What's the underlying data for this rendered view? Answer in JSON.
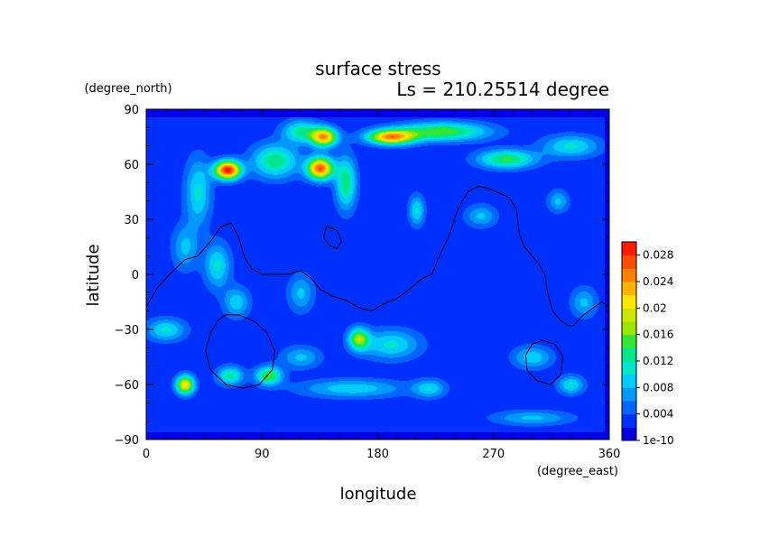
{
  "chart_data": {
    "type": "heatmap",
    "title": "surface stress",
    "subtitle": "Ls = 210.25514 degree",
    "xlabel": "longitude",
    "ylabel": "latitude",
    "x_unit": "(degree_east)",
    "y_unit": "(degree_north)",
    "xlim": [
      0,
      360
    ],
    "ylim": [
      -90,
      90
    ],
    "x_ticks": [
      "0",
      "90",
      "180",
      "270",
      "360"
    ],
    "y_ticks": [
      "90",
      "60",
      "30",
      "0",
      "−30",
      "−60",
      "−90"
    ],
    "x_tick_values": [
      0,
      90,
      180,
      270,
      360
    ],
    "y_tick_values": [
      90,
      60,
      30,
      0,
      -30,
      -60,
      -90
    ],
    "colorbar": {
      "labels": [
        "0.028",
        "0.024",
        "0.02",
        "0.016",
        "0.012",
        "0.008",
        "0.004",
        "1e-10"
      ],
      "values": [
        0.028,
        0.024,
        0.02,
        0.016,
        0.012,
        0.008,
        0.004,
        0
      ],
      "max": 0.03,
      "colors": [
        "#0000e6",
        "#0030ff",
        "#0066ff",
        "#0099ff",
        "#00ccff",
        "#00e6cc",
        "#00e68c",
        "#33e633",
        "#99e600",
        "#cce600",
        "#ffe600",
        "#ffb300",
        "#ff8000",
        "#ff4d00",
        "#ff1a00"
      ]
    },
    "field": {
      "background": 0.0025,
      "blobs": [
        {
          "lon": 63,
          "lat": 57,
          "amp": 0.027,
          "rlon": 10,
          "rlat": 5
        },
        {
          "lon": 135,
          "lat": 58,
          "amp": 0.024,
          "rlon": 10,
          "rlat": 6
        },
        {
          "lon": 138,
          "lat": 75,
          "amp": 0.021,
          "rlon": 10,
          "rlat": 5
        },
        {
          "lon": 190,
          "lat": 75,
          "amp": 0.021,
          "rlon": 18,
          "rlat": 4
        },
        {
          "lon": 230,
          "lat": 78,
          "amp": 0.013,
          "rlon": 35,
          "rlat": 5
        },
        {
          "lon": 100,
          "lat": 62,
          "amp": 0.011,
          "rlon": 18,
          "rlat": 9
        },
        {
          "lon": 155,
          "lat": 50,
          "amp": 0.011,
          "rlon": 8,
          "rlat": 14
        },
        {
          "lon": 40,
          "lat": 45,
          "amp": 0.008,
          "rlon": 10,
          "rlat": 18
        },
        {
          "lon": 120,
          "lat": 78,
          "amp": 0.01,
          "rlon": 14,
          "rlat": 6
        },
        {
          "lon": 280,
          "lat": 63,
          "amp": 0.012,
          "rlon": 22,
          "rlat": 5
        },
        {
          "lon": 330,
          "lat": 70,
          "amp": 0.008,
          "rlon": 22,
          "rlat": 6
        },
        {
          "lon": 30,
          "lat": -60,
          "amp": 0.019,
          "rlon": 7,
          "rlat": 5
        },
        {
          "lon": 95,
          "lat": -55,
          "amp": 0.013,
          "rlon": 10,
          "rlat": 5
        },
        {
          "lon": 65,
          "lat": -55,
          "amp": 0.01,
          "rlon": 10,
          "rlat": 5
        },
        {
          "lon": 165,
          "lat": -35,
          "amp": 0.014,
          "rlon": 8,
          "rlat": 6
        },
        {
          "lon": 190,
          "lat": -38,
          "amp": 0.008,
          "rlon": 22,
          "rlat": 8
        },
        {
          "lon": 15,
          "lat": -30,
          "amp": 0.008,
          "rlon": 15,
          "rlat": 6
        },
        {
          "lon": 55,
          "lat": 5,
          "amp": 0.008,
          "rlon": 10,
          "rlat": 12
        },
        {
          "lon": 70,
          "lat": -15,
          "amp": 0.007,
          "rlon": 10,
          "rlat": 8
        },
        {
          "lon": 160,
          "lat": -62,
          "amp": 0.007,
          "rlon": 40,
          "rlat": 5
        },
        {
          "lon": 220,
          "lat": -62,
          "amp": 0.007,
          "rlon": 12,
          "rlat": 5
        },
        {
          "lon": 330,
          "lat": -60,
          "amp": 0.008,
          "rlon": 10,
          "rlat": 5
        },
        {
          "lon": 300,
          "lat": -45,
          "amp": 0.007,
          "rlon": 15,
          "rlat": 6
        },
        {
          "lon": 210,
          "lat": 35,
          "amp": 0.008,
          "rlon": 6,
          "rlat": 8
        },
        {
          "lon": 260,
          "lat": 32,
          "amp": 0.006,
          "rlon": 12,
          "rlat": 6
        },
        {
          "lon": 320,
          "lat": 40,
          "amp": 0.006,
          "rlon": 8,
          "rlat": 6
        },
        {
          "lon": 340,
          "lat": -15,
          "amp": 0.006,
          "rlon": 10,
          "rlat": 8
        },
        {
          "lon": 120,
          "lat": -10,
          "amp": 0.006,
          "rlon": 10,
          "rlat": 10
        },
        {
          "lon": 30,
          "lat": 15,
          "amp": 0.006,
          "rlon": 10,
          "rlat": 12
        },
        {
          "lon": 120,
          "lat": -45,
          "amp": 0.006,
          "rlon": 15,
          "rlat": 6
        },
        {
          "lon": 300,
          "lat": -78,
          "amp": 0.006,
          "rlon": 30,
          "rlat": 4
        }
      ]
    },
    "topography_contours": [
      [
        [
          0,
          -18
        ],
        [
          8,
          -8
        ],
        [
          18,
          0
        ],
        [
          30,
          8
        ],
        [
          40,
          10
        ],
        [
          50,
          18
        ],
        [
          58,
          26
        ],
        [
          66,
          28
        ],
        [
          72,
          20
        ],
        [
          76,
          10
        ],
        [
          82,
          3
        ],
        [
          90,
          0
        ],
        [
          110,
          0
        ],
        [
          120,
          2
        ],
        [
          128,
          -2
        ],
        [
          135,
          -8
        ],
        [
          145,
          -12
        ],
        [
          155,
          -14
        ],
        [
          165,
          -18
        ],
        [
          175,
          -20
        ],
        [
          185,
          -16
        ],
        [
          195,
          -13
        ],
        [
          205,
          -8
        ],
        [
          215,
          -2
        ],
        [
          222,
          0
        ],
        [
          228,
          10
        ],
        [
          236,
          22
        ],
        [
          242,
          35
        ],
        [
          250,
          45
        ],
        [
          258,
          48
        ],
        [
          265,
          47
        ],
        [
          272,
          45
        ],
        [
          282,
          42
        ],
        [
          288,
          35
        ],
        [
          290,
          22
        ],
        [
          294,
          15
        ],
        [
          300,
          10
        ],
        [
          305,
          6
        ],
        [
          310,
          0
        ],
        [
          312,
          -10
        ],
        [
          316,
          -20
        ],
        [
          322,
          -25
        ],
        [
          328,
          -28
        ],
        [
          332,
          -28
        ],
        [
          336,
          -25
        ],
        [
          340,
          -22
        ],
        [
          348,
          -18
        ],
        [
          354,
          -15
        ],
        [
          360,
          -18
        ]
      ],
      [
        [
          62,
          -22
        ],
        [
          72,
          -22
        ],
        [
          85,
          -26
        ],
        [
          94,
          -32
        ],
        [
          100,
          -42
        ],
        [
          98,
          -52
        ],
        [
          88,
          -60
        ],
        [
          75,
          -62
        ],
        [
          62,
          -60
        ],
        [
          50,
          -52
        ],
        [
          46,
          -42
        ],
        [
          50,
          -32
        ],
        [
          56,
          -25
        ],
        [
          62,
          -22
        ]
      ],
      [
        [
          300,
          -38
        ],
        [
          308,
          -36
        ],
        [
          318,
          -38
        ],
        [
          324,
          -45
        ],
        [
          322,
          -55
        ],
        [
          314,
          -60
        ],
        [
          304,
          -58
        ],
        [
          296,
          -52
        ],
        [
          295,
          -44
        ],
        [
          300,
          -38
        ]
      ],
      [
        [
          140,
          26
        ],
        [
          148,
          24
        ],
        [
          152,
          18
        ],
        [
          148,
          14
        ],
        [
          142,
          16
        ],
        [
          138,
          20
        ],
        [
          140,
          26
        ]
      ]
    ]
  }
}
